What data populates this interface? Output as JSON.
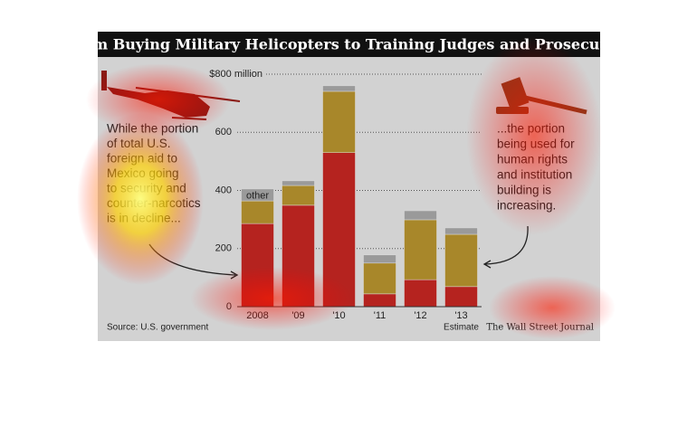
{
  "chart_data": {
    "type": "stacked-bar",
    "title": "From Buying Military Helicopters to Training Judges and Prosecutors",
    "categories": [
      "2008",
      "'09",
      "'10",
      "'11",
      "'12",
      "'13"
    ],
    "series": [
      {
        "color": "#b5231f",
        "values": [
          286,
          349,
          530,
          44,
          93,
          69
        ]
      },
      {
        "color": "#a8872a",
        "values": [
          78,
          68,
          211,
          106,
          206,
          180
        ]
      },
      {
        "name": "other",
        "color": "#9a9a9a",
        "values": [
          41,
          16,
          19,
          28,
          31,
          22
        ]
      }
    ],
    "ylim": [
      0,
      800
    ],
    "yticks": [
      0,
      200,
      400,
      600,
      {
        "value": 800,
        "label": "$800 million"
      }
    ],
    "grid": true,
    "category_note": "Estimate",
    "left_annotation": [
      "While the portion",
      "of total U.S.",
      "foreign aid to",
      "Mexico going",
      "to security and",
      "counter-narcotics",
      "is in decline..."
    ],
    "right_annotation": [
      "...the portion",
      "being used for",
      "human rights",
      "and institution",
      "building is",
      "increasing."
    ],
    "source": "Source: U.S. government",
    "credit": "The Wall Street Journal"
  }
}
